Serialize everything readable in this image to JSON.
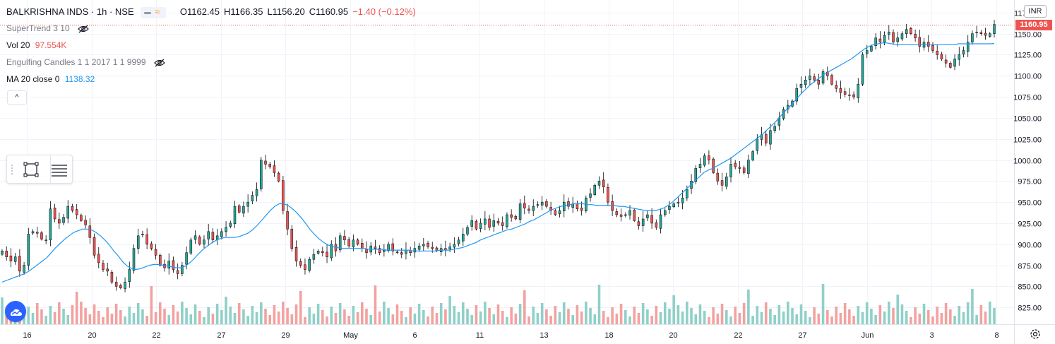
{
  "header": {
    "symbol_label": "BALKRISHNA INDS · 1h · NSE",
    "open": "O1162.45",
    "high": "H1166.35",
    "low": "L1156.20",
    "close": "C1160.95",
    "change": "−1.40 (−0.12%)",
    "change_color": "#ef5350"
  },
  "indicators": {
    "supertrend": {
      "label": "SuperTrend 3 10",
      "icon": "eye-crossed-icon"
    },
    "volume": {
      "label": "Vol 20",
      "value": "97.554K",
      "color": "#ef5350"
    },
    "engulfing": {
      "label": "Engulfing Candles 1 1 2017 1 1 9999",
      "icon": "eye-crossed-icon"
    },
    "ma": {
      "label": "MA 20 close 0",
      "value": "1138.32",
      "color": "#2196f3"
    }
  },
  "collapse_glyph": "^",
  "price_axis": {
    "currency": "INR",
    "last_price": "1160.95",
    "last_price_color": "#ef5350"
  },
  "colors": {
    "up": "#26a69a",
    "down": "#ef5350",
    "up_volume": "#8fd0c8",
    "down_volume": "#f2a2a0",
    "ma": "#2196f3",
    "grid": "#f0f3fa"
  },
  "chart_data": {
    "type": "candlestick",
    "ylim": [
      805,
      1190
    ],
    "y_ticks": [
      "825.00",
      "850.00",
      "875.00",
      "900.00",
      "925.00",
      "950.00",
      "975.00",
      "1000.00",
      "1025.00",
      "1050.00",
      "1075.00",
      "1100.00",
      "1125.00",
      "1150.00",
      "1175.00"
    ],
    "x_tick_labels": [
      "16",
      "20",
      "22",
      "27",
      "29",
      "May",
      "6",
      "11",
      "13",
      "18",
      "20",
      "22",
      "27",
      "Jun",
      "3",
      "8"
    ],
    "last_price": 1160.95,
    "ma20_last": 1138.32,
    "volume_last": "97.554K",
    "close_series": [
      892,
      885,
      880,
      885,
      868,
      875,
      912,
      915,
      913,
      906,
      905,
      942,
      930,
      925,
      932,
      945,
      940,
      935,
      928,
      923,
      908,
      887,
      878,
      870,
      868,
      855,
      850,
      848,
      855,
      870,
      895,
      910,
      912,
      900,
      895,
      887,
      875,
      872,
      880,
      870,
      865,
      875,
      890,
      905,
      910,
      900,
      905,
      915,
      905,
      910,
      915,
      920,
      925,
      945,
      938,
      945,
      950,
      958,
      965,
      1000,
      995,
      992,
      985,
      975,
      940,
      918,
      895,
      880,
      875,
      870,
      882,
      888,
      892,
      890,
      885,
      900,
      892,
      910,
      905,
      898,
      905,
      900,
      895,
      890,
      898,
      895,
      890,
      893,
      900,
      892,
      890,
      888,
      893,
      890,
      895,
      898,
      900,
      897,
      895,
      892,
      895,
      893,
      897,
      900,
      905,
      912,
      920,
      928,
      918,
      925,
      930,
      920,
      928,
      925,
      922,
      935,
      932,
      930,
      948,
      943,
      940,
      945,
      947,
      950,
      945,
      940,
      935,
      940,
      950,
      945,
      948,
      942,
      940,
      955,
      960,
      970,
      975,
      968,
      950,
      940,
      935,
      933,
      935,
      940,
      928,
      922,
      930,
      935,
      925,
      920,
      935,
      940,
      945,
      948,
      950,
      955,
      965,
      975,
      990,
      995,
      1005,
      1000,
      985,
      975,
      970,
      980,
      995,
      992,
      990,
      985,
      1000,
      1010,
      1025,
      1030,
      1020,
      1035,
      1040,
      1050,
      1060,
      1065,
      1070,
      1085,
      1090,
      1095,
      1100,
      1095,
      1090,
      1105,
      1100,
      1090,
      1085,
      1080,
      1078,
      1077,
      1075,
      1090,
      1125,
      1130,
      1135,
      1145,
      1140,
      1148,
      1152,
      1140,
      1145,
      1150,
      1155,
      1150,
      1145,
      1135,
      1140,
      1135,
      1130,
      1125,
      1120,
      1115,
      1110,
      1120,
      1125,
      1130,
      1140,
      1150,
      1152,
      1150,
      1148,
      1150,
      1160.95
    ],
    "ma20_series": [
      855,
      857,
      859,
      861,
      863,
      865,
      868,
      872,
      876,
      880,
      884,
      890,
      896,
      901,
      906,
      910,
      914,
      916,
      918,
      918,
      917,
      914,
      910,
      905,
      899,
      892,
      886,
      879,
      874,
      871,
      870,
      871,
      873,
      875,
      876,
      876,
      875,
      874,
      873,
      872,
      872,
      874,
      878,
      883,
      889,
      894,
      898,
      902,
      905,
      907,
      908,
      908,
      908,
      909,
      911,
      913,
      917,
      922,
      928,
      934,
      940,
      945,
      948,
      948,
      946,
      942,
      937,
      931,
      924,
      917,
      911,
      906,
      902,
      899,
      897,
      896,
      895,
      895,
      895,
      895,
      895,
      895,
      894,
      894,
      894,
      894,
      893,
      893,
      893,
      893,
      893,
      893,
      892,
      892,
      892,
      892,
      892,
      892,
      893,
      893,
      893,
      894,
      895,
      896,
      898,
      900,
      902,
      905,
      907,
      909,
      911,
      913,
      915,
      917,
      918,
      920,
      922,
      924,
      927,
      929,
      932,
      935,
      938,
      941,
      943,
      945,
      946,
      947,
      948,
      948,
      948,
      947,
      947,
      946,
      946,
      946,
      946,
      946,
      945,
      945,
      944,
      943,
      942,
      941,
      940,
      940,
      940,
      941,
      943,
      946,
      950,
      955,
      960,
      965,
      970,
      975,
      980,
      985,
      988,
      990,
      993,
      996,
      999,
      1002,
      1006,
      1010,
      1014,
      1018,
      1022,
      1026,
      1030,
      1035,
      1040,
      1045,
      1051,
      1057,
      1062,
      1068,
      1074,
      1080,
      1085,
      1090,
      1094,
      1098,
      1102,
      1105,
      1108,
      1111,
      1114,
      1117,
      1120,
      1124,
      1128,
      1132,
      1135,
      1137,
      1138,
      1139,
      1139,
      1138,
      1137,
      1137,
      1137,
      1137,
      1137,
      1137,
      1137,
      1137,
      1137,
      1137,
      1137,
      1137,
      1137,
      1137,
      1138,
      1138,
      1138,
      1138,
      1138,
      1138,
      1138,
      1138,
      1138.32
    ]
  }
}
